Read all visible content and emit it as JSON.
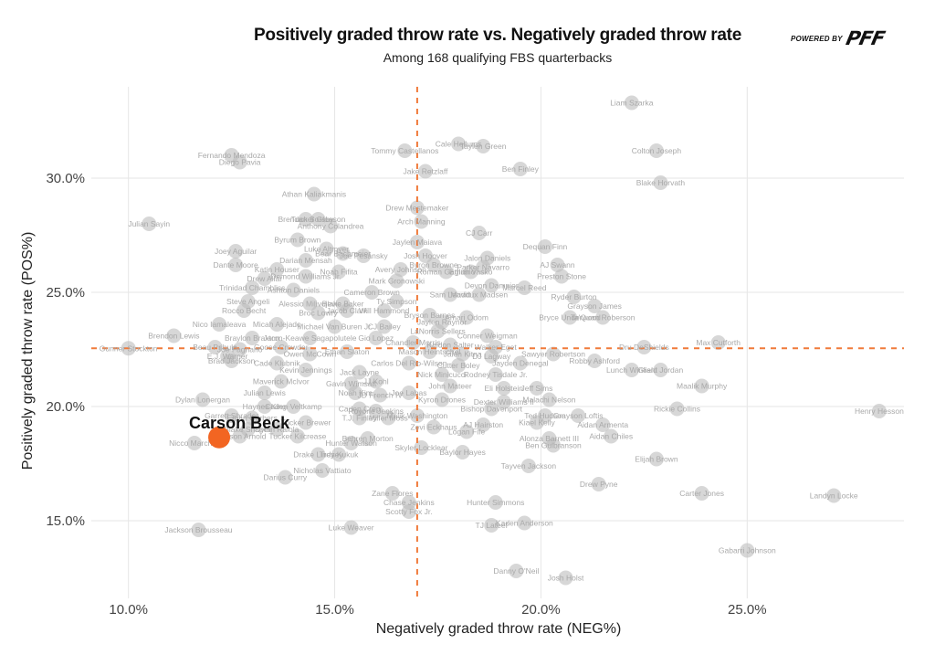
{
  "chart_data": {
    "type": "scatter",
    "title": "Positively graded throw rate vs. Negatively graded throw rate",
    "subtitle": "Among 168 qualifying FBS quarterbacks",
    "xlabel": "Negatively graded throw rate (NEG%)",
    "ylabel": "Positively graded throw rate (POS%)",
    "xlim": [
      9.1,
      28.8
    ],
    "ylim": [
      11.6,
      34.0
    ],
    "x_ticks": [
      10,
      15,
      20,
      25
    ],
    "y_ticks": [
      15,
      20,
      25,
      30
    ],
    "x_tick_labels": [
      "10.0%",
      "15.0%",
      "20.0%",
      "25.0%"
    ],
    "y_tick_labels": [
      "15.0%",
      "20.0%",
      "25.0%",
      "30.0%"
    ],
    "grid": true,
    "reference_lines": {
      "x_average": 17.0,
      "y_average": 22.55,
      "color": "#f07a3a",
      "style": "dashed"
    },
    "highlight": {
      "name": "Carson Beck",
      "x": 12.2,
      "y": 18.65,
      "color": "#f26522"
    },
    "point_color": "#cfcfcf",
    "points": [
      {
        "name": "Liam Szarka",
        "x": 22.2,
        "y": 33.3
      },
      {
        "name": "Cale Hellums",
        "x": 18.0,
        "y": 31.5
      },
      {
        "name": "Taylen Green",
        "x": 18.6,
        "y": 31.4
      },
      {
        "name": "Tommy Castellanos",
        "x": 16.7,
        "y": 31.2
      },
      {
        "name": "Colton Joseph",
        "x": 22.8,
        "y": 31.2
      },
      {
        "name": "Fernando Mendoza",
        "x": 12.5,
        "y": 31.0
      },
      {
        "name": "Diego Pavia",
        "x": 12.7,
        "y": 30.7
      },
      {
        "name": "Jake Retzlaff",
        "x": 17.2,
        "y": 30.3
      },
      {
        "name": "Ben Finley",
        "x": 19.5,
        "y": 30.4
      },
      {
        "name": "Blake Horvath",
        "x": 22.9,
        "y": 29.8
      },
      {
        "name": "Athan Kaliakmanis",
        "x": 14.5,
        "y": 29.3
      },
      {
        "name": "Drew Mestemaker",
        "x": 17.0,
        "y": 28.7
      },
      {
        "name": "Brendan Sorsby",
        "x": 14.3,
        "y": 28.2
      },
      {
        "name": "Tucker Gleason",
        "x": 14.6,
        "y": 28.2
      },
      {
        "name": "Arch Manning",
        "x": 17.1,
        "y": 28.1
      },
      {
        "name": "Julian Sayin",
        "x": 10.5,
        "y": 28.0
      },
      {
        "name": "Anthony Colandrea",
        "x": 14.9,
        "y": 27.9
      },
      {
        "name": "CJ Carr",
        "x": 18.5,
        "y": 27.6
      },
      {
        "name": "Byrum Brown",
        "x": 14.1,
        "y": 27.3
      },
      {
        "name": "Jaylen Maiava",
        "x": 17.0,
        "y": 27.2
      },
      {
        "name": "Dequan Finn",
        "x": 20.1,
        "y": 27.0
      },
      {
        "name": "Luke Altmyer",
        "x": 14.8,
        "y": 26.9
      },
      {
        "name": "Bear Bachmeier",
        "x": 15.2,
        "y": 26.7
      },
      {
        "name": "Josh Hoover",
        "x": 17.2,
        "y": 26.6
      },
      {
        "name": "Jalon Daniels",
        "x": 18.7,
        "y": 26.5
      },
      {
        "name": "Joey Aguilar",
        "x": 12.6,
        "y": 26.8
      },
      {
        "name": "Darian Mensah",
        "x": 14.3,
        "y": 26.4
      },
      {
        "name": "Joe Pesansky",
        "x": 15.7,
        "y": 26.6
      },
      {
        "name": "Byron Browne",
        "x": 17.4,
        "y": 26.2
      },
      {
        "name": "Parker Navarro",
        "x": 18.6,
        "y": 26.1
      },
      {
        "name": "AJ Swann",
        "x": 20.4,
        "y": 26.2
      },
      {
        "name": "Dante Moore",
        "x": 12.6,
        "y": 26.2
      },
      {
        "name": "Katin Houser",
        "x": 13.6,
        "y": 26.0
      },
      {
        "name": "Noah Fifita",
        "x": 15.1,
        "y": 25.9
      },
      {
        "name": "Avery Johnson",
        "x": 16.6,
        "y": 26.0
      },
      {
        "name": "Roman Gagliano",
        "x": 17.7,
        "y": 25.9
      },
      {
        "name": "Ethan Vasko",
        "x": 18.3,
        "y": 25.9
      },
      {
        "name": "Preston Stone",
        "x": 20.5,
        "y": 25.7
      },
      {
        "name": "Drew Allar",
        "x": 13.3,
        "y": 25.6
      },
      {
        "name": "Demond Williams Jr.",
        "x": 14.3,
        "y": 25.7
      },
      {
        "name": "Mark Gronowski",
        "x": 16.5,
        "y": 25.5
      },
      {
        "name": "Devon Dampier",
        "x": 18.8,
        "y": 25.3
      },
      {
        "name": "Marcel Reed",
        "x": 19.6,
        "y": 25.2
      },
      {
        "name": "Trinidad Chambliss",
        "x": 13.0,
        "y": 25.2
      },
      {
        "name": "Ashton Daniels",
        "x": 14.0,
        "y": 25.1
      },
      {
        "name": "Cameron Brown",
        "x": 15.9,
        "y": 25.0
      },
      {
        "name": "Sam Leavitt",
        "x": 17.8,
        "y": 24.9
      },
      {
        "name": "Maddux Madsen",
        "x": 18.5,
        "y": 24.9
      },
      {
        "name": "Ryder Burton",
        "x": 20.8,
        "y": 24.8
      },
      {
        "name": "Steve Angeli",
        "x": 12.9,
        "y": 24.6
      },
      {
        "name": "Alessio Milivojevic",
        "x": 14.4,
        "y": 24.5
      },
      {
        "name": "Blake Baker",
        "x": 15.2,
        "y": 24.5
      },
      {
        "name": "Ty Simpson",
        "x": 16.5,
        "y": 24.6
      },
      {
        "name": "Grayson James",
        "x": 21.3,
        "y": 24.4
      },
      {
        "name": "Rocco Becht",
        "x": 12.8,
        "y": 24.2
      },
      {
        "name": "Broc Lowry",
        "x": 14.6,
        "y": 24.1
      },
      {
        "name": "Jacob Clark",
        "x": 15.3,
        "y": 24.2
      },
      {
        "name": "Will Hammond",
        "x": 16.2,
        "y": 24.2
      },
      {
        "name": "Bryson Barnes",
        "x": 17.3,
        "y": 24.0
      },
      {
        "name": "Amari Odom",
        "x": 18.2,
        "y": 23.9
      },
      {
        "name": "Bryce Underwood",
        "x": 20.7,
        "y": 23.9
      },
      {
        "name": "Ta'Quan Roberson",
        "x": 21.5,
        "y": 23.9
      },
      {
        "name": "Jaylen Raynor",
        "x": 17.6,
        "y": 23.7
      },
      {
        "name": "Nico Iamaleava",
        "x": 12.2,
        "y": 23.6
      },
      {
        "name": "Micah Alejado",
        "x": 13.6,
        "y": 23.6
      },
      {
        "name": "Michael Van Buren Jr.",
        "x": 15.0,
        "y": 23.5
      },
      {
        "name": "CJ Bailey",
        "x": 16.2,
        "y": 23.5
      },
      {
        "name": "Brendon Lewis",
        "x": 11.1,
        "y": 23.1
      },
      {
        "name": "LaNorris Sellers",
        "x": 17.5,
        "y": 23.3
      },
      {
        "name": "Conner Weigman",
        "x": 18.7,
        "y": 23.1
      },
      {
        "name": "Braylon Braxton",
        "x": 13.0,
        "y": 23.0
      },
      {
        "name": "Jaron-Keawe Sagapolutele",
        "x": 14.4,
        "y": 23.0
      },
      {
        "name": "Gio Lopez",
        "x": 16.0,
        "y": 23.0
      },
      {
        "name": "Kaidon Salter",
        "x": 17.8,
        "y": 22.7
      },
      {
        "name": "Walker Eget",
        "x": 18.9,
        "y": 22.6
      },
      {
        "name": "Beau Pribula",
        "x": 12.1,
        "y": 22.6
      },
      {
        "name": "Joe Fagnano",
        "x": 12.7,
        "y": 22.5
      },
      {
        "name": "Goose Crowder",
        "x": 13.7,
        "y": 22.6
      },
      {
        "name": "Chandler Morris",
        "x": 16.9,
        "y": 22.8
      },
      {
        "name": "Dru DeShields",
        "x": 22.5,
        "y": 22.6
      },
      {
        "name": "Max Cutforth",
        "x": 24.3,
        "y": 22.8
      },
      {
        "name": "Gunner Stockton",
        "x": 10.0,
        "y": 22.55
      },
      {
        "name": "Ethan Slaton",
        "x": 15.3,
        "y": 22.4
      },
      {
        "name": "Sawyer Robertson",
        "x": 20.3,
        "y": 22.3
      },
      {
        "name": "E.J. Warner",
        "x": 12.4,
        "y": 22.2
      },
      {
        "name": "Owen McCown",
        "x": 14.4,
        "y": 22.3
      },
      {
        "name": "Mason Heintschel",
        "x": 17.3,
        "y": 22.4
      },
      {
        "name": "Jalen Kitna",
        "x": 18.1,
        "y": 22.3
      },
      {
        "name": "DJ Lagway",
        "x": 18.8,
        "y": 22.2
      },
      {
        "name": "Robby Ashford",
        "x": 21.3,
        "y": 22.0
      },
      {
        "name": "Brad Jackson",
        "x": 12.5,
        "y": 22.0
      },
      {
        "name": "Cade Klubnik",
        "x": 13.6,
        "y": 21.9
      },
      {
        "name": "Carlos Del Rio-Wilson",
        "x": 16.8,
        "y": 21.9
      },
      {
        "name": "Cutter Boley",
        "x": 18.0,
        "y": 21.8
      },
      {
        "name": "Jayden Denegal",
        "x": 19.5,
        "y": 21.9
      },
      {
        "name": "Kevin Jennings",
        "x": 14.3,
        "y": 21.6
      },
      {
        "name": "Jack Layne",
        "x": 15.6,
        "y": 21.5
      },
      {
        "name": "Lunch Winfield",
        "x": 22.2,
        "y": 21.6
      },
      {
        "name": "Grant Jordan",
        "x": 22.9,
        "y": 21.6
      },
      {
        "name": "Nick Minicucci",
        "x": 17.6,
        "y": 21.4
      },
      {
        "name": "Rodney Tisdale Jr.",
        "x": 18.9,
        "y": 21.4
      },
      {
        "name": "Maverick McIvor",
        "x": 13.7,
        "y": 21.1
      },
      {
        "name": "Gavin Wimsatt",
        "x": 15.4,
        "y": 21.0
      },
      {
        "name": "JJ Kohl",
        "x": 16.0,
        "y": 21.1
      },
      {
        "name": "Maalik Murphy",
        "x": 23.9,
        "y": 20.9
      },
      {
        "name": "John Mateer",
        "x": 17.8,
        "y": 20.9
      },
      {
        "name": "Eli Holstein",
        "x": 19.1,
        "y": 20.8
      },
      {
        "name": "Jeff Sims",
        "x": 19.9,
        "y": 20.8
      },
      {
        "name": "Julian Lewis",
        "x": 13.3,
        "y": 20.6
      },
      {
        "name": "Noah Kim",
        "x": 15.5,
        "y": 20.6
      },
      {
        "name": "JD French IV",
        "x": 16.1,
        "y": 20.5
      },
      {
        "name": "Joe Labas",
        "x": 16.8,
        "y": 20.6
      },
      {
        "name": "Dylan Lonergan",
        "x": 11.8,
        "y": 20.3
      },
      {
        "name": "Kyron Drones",
        "x": 17.6,
        "y": 20.3
      },
      {
        "name": "Dexter Williams II",
        "x": 19.1,
        "y": 20.2
      },
      {
        "name": "Malachi Nelson",
        "x": 20.2,
        "y": 20.3
      },
      {
        "name": "Rickie Collins",
        "x": 23.3,
        "y": 19.9
      },
      {
        "name": "Haynes King",
        "x": 13.3,
        "y": 20.0
      },
      {
        "name": "Caden Veltkamp",
        "x": 14.0,
        "y": 20.0
      },
      {
        "name": "Caden Crep",
        "x": 15.6,
        "y": 19.9
      },
      {
        "name": "Royone Jenkins",
        "x": 16.0,
        "y": 19.8
      },
      {
        "name": "Bishop Davenport",
        "x": 18.8,
        "y": 19.9
      },
      {
        "name": "Ted Hudson",
        "x": 20.1,
        "y": 19.6
      },
      {
        "name": "Grayson Loftis",
        "x": 20.9,
        "y": 19.6
      },
      {
        "name": "Henry Hesson",
        "x": 28.2,
        "y": 19.8
      },
      {
        "name": "Garrett Shrader",
        "x": 12.5,
        "y": 19.6
      },
      {
        "name": "Ethan Garbers",
        "x": 13.0,
        "y": 19.5
      },
      {
        "name": "T.J. Finley",
        "x": 15.6,
        "y": 19.5
      },
      {
        "name": "Miller Moss",
        "x": 16.3,
        "y": 19.5
      },
      {
        "name": "Malik Washington",
        "x": 17.0,
        "y": 19.6
      },
      {
        "name": "Tucker Brewer",
        "x": 14.3,
        "y": 19.3
      },
      {
        "name": "Zevi Eckhaus",
        "x": 17.4,
        "y": 19.1
      },
      {
        "name": "Kiael Kelly",
        "x": 19.9,
        "y": 19.3
      },
      {
        "name": "Aidan Armenta",
        "x": 21.5,
        "y": 19.2
      },
      {
        "name": "Blake Shapen",
        "x": 12.9,
        "y": 19.0
      },
      {
        "name": "Dylan Raiola",
        "x": 13.6,
        "y": 19.0
      },
      {
        "name": "AJ Hairston",
        "x": 18.6,
        "y": 19.2
      },
      {
        "name": "Behren Morton",
        "x": 15.8,
        "y": 18.6
      },
      {
        "name": "Logan Fife",
        "x": 18.2,
        "y": 18.9
      },
      {
        "name": "Alonza Barnett III",
        "x": 20.2,
        "y": 18.6
      },
      {
        "name": "Aidan Chiles",
        "x": 21.7,
        "y": 18.7
      },
      {
        "name": "Tucker Kilcrease",
        "x": 14.1,
        "y": 18.7
      },
      {
        "name": "Jackson Arnold",
        "x": 12.7,
        "y": 18.7
      },
      {
        "name": "Nicco Marchiol",
        "x": 11.6,
        "y": 18.4
      },
      {
        "name": "Hunter Watson",
        "x": 15.4,
        "y": 18.4
      },
      {
        "name": "Skyler Locklear",
        "x": 17.1,
        "y": 18.2
      },
      {
        "name": "Ben Gulbranson",
        "x": 20.3,
        "y": 18.3
      },
      {
        "name": "Baylor Hayes",
        "x": 18.1,
        "y": 18.0
      },
      {
        "name": "Trey Kukuk",
        "x": 15.1,
        "y": 17.9
      },
      {
        "name": "Drake Lindsey",
        "x": 14.6,
        "y": 17.9
      },
      {
        "name": "Elijah Brown",
        "x": 22.8,
        "y": 17.7
      },
      {
        "name": "Tayven Jackson",
        "x": 19.7,
        "y": 17.4
      },
      {
        "name": "Nicholas Vattiato",
        "x": 14.7,
        "y": 17.2
      },
      {
        "name": "Darius Curry",
        "x": 13.8,
        "y": 16.9
      },
      {
        "name": "Drew Pyne",
        "x": 21.4,
        "y": 16.6
      },
      {
        "name": "Carter Jones",
        "x": 23.9,
        "y": 16.2
      },
      {
        "name": "Landyn Locke",
        "x": 27.1,
        "y": 16.1
      },
      {
        "name": "Zane Flores",
        "x": 16.4,
        "y": 16.2
      },
      {
        "name": "Hunter Simmons",
        "x": 18.9,
        "y": 15.8
      },
      {
        "name": "Chase Jenkins",
        "x": 16.8,
        "y": 15.8
      },
      {
        "name": "Scotty Fox Jr.",
        "x": 16.8,
        "y": 15.4
      },
      {
        "name": "Kaden Anderson",
        "x": 19.6,
        "y": 14.9
      },
      {
        "name": "TJ Lateef",
        "x": 18.8,
        "y": 14.8
      },
      {
        "name": "Jackson Brousseau",
        "x": 11.7,
        "y": 14.6
      },
      {
        "name": "Luke Weaver",
        "x": 15.4,
        "y": 14.7
      },
      {
        "name": "Gabarri Johnson",
        "x": 25.0,
        "y": 13.7
      },
      {
        "name": "Danny O'Neil",
        "x": 19.4,
        "y": 12.8
      },
      {
        "name": "Josh Holst",
        "x": 20.6,
        "y": 12.5
      }
    ]
  },
  "branding": {
    "powered_by": "POWERED BY",
    "logo": "PFF"
  }
}
